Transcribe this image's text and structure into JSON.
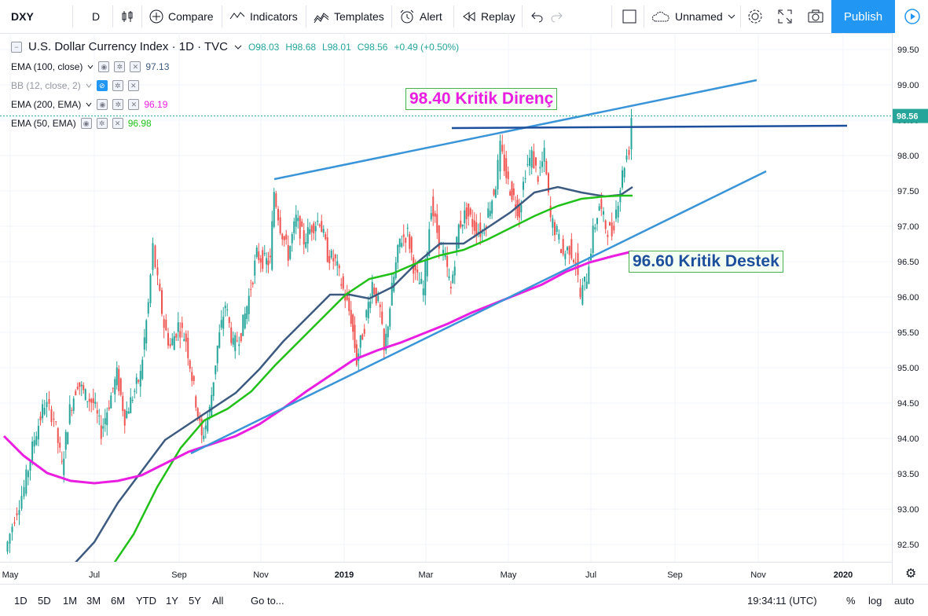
{
  "toolbar": {
    "symbol": "DXY",
    "interval": "D",
    "compare": "Compare",
    "indicators": "Indicators",
    "templates": "Templates",
    "alert": "Alert",
    "replay": "Replay",
    "layout_name": "Unnamed",
    "publish": "Publish"
  },
  "legend": {
    "title": "U.S. Dollar Currency Index · 1D · TVC",
    "open": "O98.03",
    "high": "H98.68",
    "low": "L98.01",
    "close": "C98.56",
    "change": "+0.49 (+0.50%)",
    "indicators": [
      {
        "label": "EMA (100, close)",
        "value": "97.13",
        "color": "#3d5a80"
      },
      {
        "label": "BB (12, close, 2)",
        "value": "",
        "color": "#9598a1"
      },
      {
        "label": "EMA (200, EMA)",
        "value": "96.19",
        "color": "#e91ee0"
      },
      {
        "label": "EMA (50, EMA)",
        "value": "96.98",
        "color": "#22c11a"
      }
    ]
  },
  "annotations": {
    "resistance": "98.40 Kritik Direnç",
    "support": "96.60 Kritik Destek"
  },
  "chart_data": {
    "type": "candlestick",
    "title": "U.S. Dollar Currency Index · 1D · TVC",
    "xlabel": "",
    "ylabel": "",
    "x_tick_labels": [
      "May",
      "Jul",
      "Sep",
      "Nov",
      "2019",
      "Mar",
      "May",
      "Jul",
      "Sep",
      "Nov",
      "2020"
    ],
    "y_tick_labels": [
      "99.50",
      "99.00",
      "98.50",
      "98.00",
      "97.50",
      "97.00",
      "96.50",
      "96.00",
      "95.50",
      "95.00",
      "94.50",
      "94.00",
      "93.50",
      "93.00",
      "92.50"
    ],
    "ylim": [
      92.3,
      99.7
    ],
    "last_price": "98.56",
    "grid": true,
    "up_color": "#26a69a",
    "down_color": "#ef5350",
    "series": [
      {
        "name": "EMA (100, close)",
        "color": "#3d5a80",
        "last": 97.13
      },
      {
        "name": "EMA (200, EMA)",
        "color": "#e91ee0",
        "last": 96.19
      },
      {
        "name": "EMA (50, EMA)",
        "color": "#22c11a",
        "last": 96.98
      }
    ],
    "trendlines": [
      {
        "role": "upper channel",
        "from": [
          "2018-10-31",
          97.7
        ],
        "to": [
          "2019-10-31",
          99.08
        ],
        "color": "#3a94d8"
      },
      {
        "role": "lower channel",
        "from": [
          "2018-09-10",
          93.8
        ],
        "to": [
          "2019-10-31",
          97.78
        ],
        "color": "#3a94d8"
      },
      {
        "role": "resistance",
        "from": [
          "2019-03-15",
          98.36
        ],
        "to": [
          "2020-01-01",
          98.42
        ],
        "color": "#1e4f9c"
      }
    ]
  },
  "bottombar": {
    "ranges": [
      "1D",
      "5D",
      "1M",
      "3M",
      "6M",
      "YTD",
      "1Y",
      "5Y",
      "All"
    ],
    "goto": "Go to...",
    "clock": "19:34:11 (UTC)",
    "percent": "%",
    "log": "log",
    "auto": "auto"
  }
}
